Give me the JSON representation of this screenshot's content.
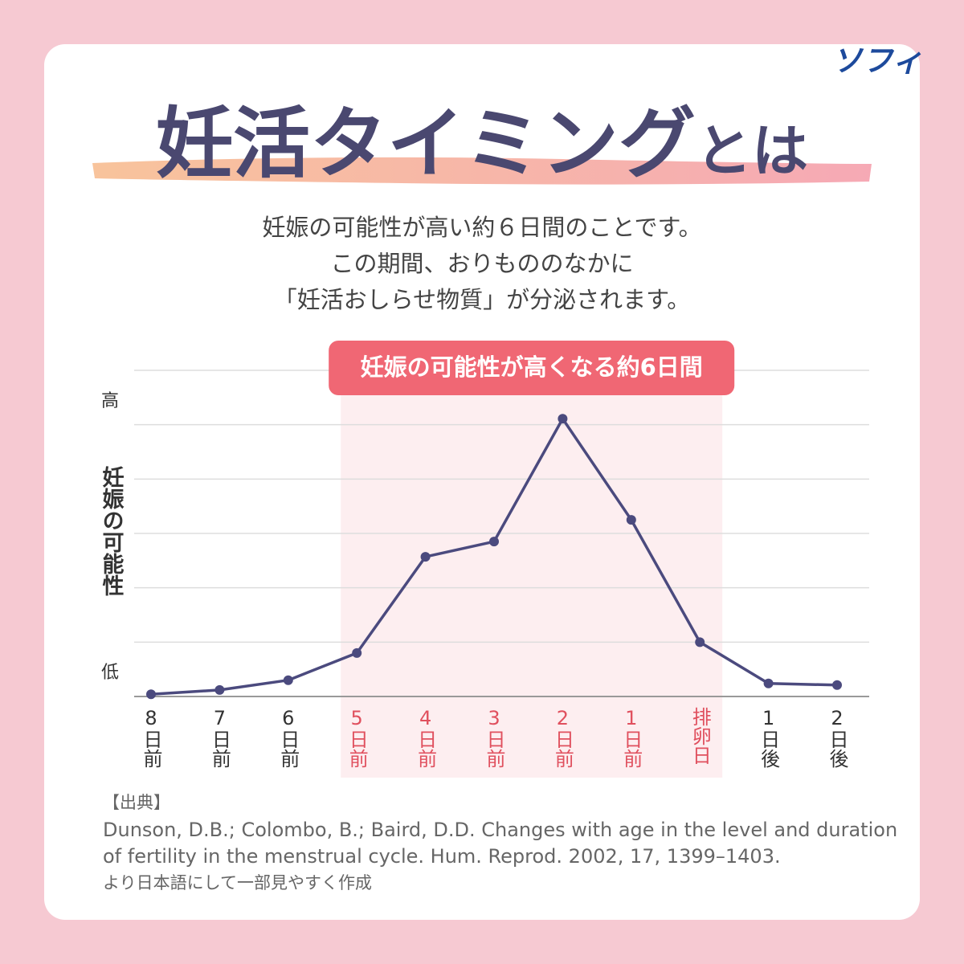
{
  "header": {
    "logo": "ソフィ",
    "title": "妊活タイミング",
    "title_suffix": "とは",
    "lines": [
      "妊娠の可能性が高い約６日間のことです。",
      "この期間、おりもののなかに",
      "「妊活おしらせ物質」が分泌されます。"
    ]
  },
  "chart_data": {
    "type": "line",
    "categories": [
      "8日前",
      "7日前",
      "6日前",
      "5日前",
      "4日前",
      "3日前",
      "2日前",
      "1日前",
      "排卵日",
      "1日後",
      "2日後"
    ],
    "series": [
      {
        "color": "#4b4a7e",
        "values": [
          0.04,
          0.12,
          0.3,
          0.8,
          2.57,
          2.85,
          5.11,
          3.25,
          1.0,
          0.24,
          0.21
        ]
      }
    ],
    "y_label": "妊娠の可能性",
    "ylim": [
      0,
      6
    ],
    "yticks": [
      {
        "value": 0.43,
        "label": "低"
      },
      {
        "value": 5.42,
        "label": "高"
      }
    ],
    "gridlines": [
      0,
      1,
      2,
      3,
      4,
      5,
      6
    ],
    "highlight": {
      "label": "妊娠の可能性が高くなる約6日間",
      "from": "5日前",
      "to": "排卵日",
      "color": "#f06774"
    }
  },
  "source": {
    "heading": "【出典】",
    "lines": [
      "Dunson, D.B.; Colombo, B.; Baird, D.D. Changes with age in the level and duration",
      "of fertility in the menstrual cycle. Hum. Reprod. 2002, 17, 1399–1403.",
      "より日本語にして一部見やすく作成"
    ]
  }
}
